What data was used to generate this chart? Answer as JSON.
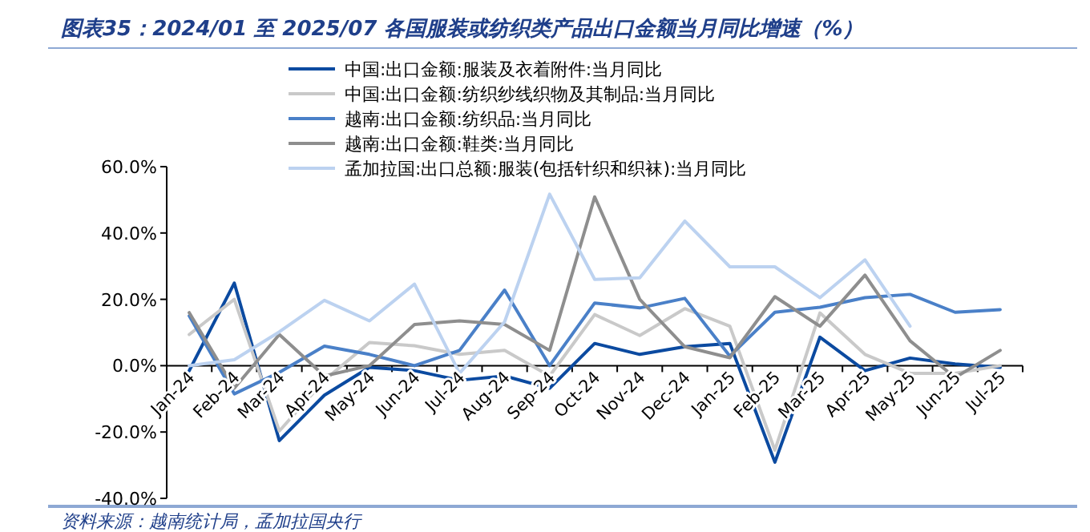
{
  "chart_data": {
    "type": "line",
    "title": "图表35：2024/01 至 2025/07 各国服装或纺织类产品出口金额当月同比增速（%）",
    "categories": [
      "Jan-24",
      "Feb-24",
      "Mar-24",
      "Apr-24",
      "May-24",
      "Jun-24",
      "Jul-24",
      "Aug-24",
      "Sep-24",
      "Oct-24",
      "Nov-24",
      "Dec-24",
      "Jan-25",
      "Feb-25",
      "Mar-25",
      "Apr-25",
      "May-25",
      "Jun-25",
      "Jul-25"
    ],
    "series": [
      {
        "name": "中国:出口金额:服装及衣着附件:当月同比",
        "color": "#0b4aa0",
        "values": [
          -1.5,
          24.9,
          -22.6,
          -8.9,
          -0.5,
          -1.5,
          -4.4,
          -3.1,
          -6.8,
          6.7,
          3.4,
          5.7,
          6.7,
          -29.1,
          8.6,
          -1.5,
          2.3,
          0.5,
          -0.5
        ]
      },
      {
        "name": "中国:出口金额:纺织纱线织物及其制品:当月同比",
        "color": "#c9c9c9",
        "values": [
          9.4,
          20,
          -19.7,
          -4.4,
          7,
          6,
          3.4,
          4.6,
          -3.1,
          15.4,
          9.1,
          17.2,
          11.9,
          -25.5,
          15.9,
          3.4,
          -2.3,
          -2.3,
          0
        ]
      },
      {
        "name": "越南:出口金额:纺织品:当月同比",
        "color": "#4a80c8",
        "values": [
          15,
          -8.5,
          -2,
          5.9,
          3.4,
          0,
          4.6,
          22.8,
          0,
          18.9,
          17.4,
          20.3,
          2.9,
          16.1,
          17.6,
          20.5,
          21.5,
          16.1,
          16.9
        ]
      },
      {
        "name": "越南:出口金额:鞋类:当月同比",
        "color": "#8e8e8e",
        "values": [
          16,
          -6.8,
          9.4,
          -3.1,
          0,
          12.4,
          13.5,
          12.4,
          4.6,
          50.9,
          20,
          5.7,
          2.4,
          20.8,
          11.9,
          27.3,
          7.5,
          -3.6,
          4.6
        ]
      },
      {
        "name": "孟加拉国:出口总额:服装(包括针织和织袜):当月同比",
        "color": "#bcd2f0",
        "values": [
          0,
          1.8,
          10.2,
          19.7,
          13.5,
          24.6,
          -2.3,
          13.2,
          51.7,
          26,
          26.5,
          43.6,
          29.8,
          29.8,
          20.5,
          31.9,
          11.9,
          null,
          null
        ]
      }
    ],
    "ylim": [
      -40,
      60
    ],
    "yticks": [
      {
        "value": -40,
        "label": "-40.0%"
      },
      {
        "value": -20,
        "label": "-20.0%"
      },
      {
        "value": 0,
        "label": "0.0%"
      },
      {
        "value": 20,
        "label": "20.0%"
      },
      {
        "value": 40,
        "label": "40.0%"
      },
      {
        "value": 60,
        "label": "60.0%"
      }
    ],
    "legend": "top",
    "annotations": [
      "资料来源：越南统计局，孟加拉国央行"
    ]
  }
}
